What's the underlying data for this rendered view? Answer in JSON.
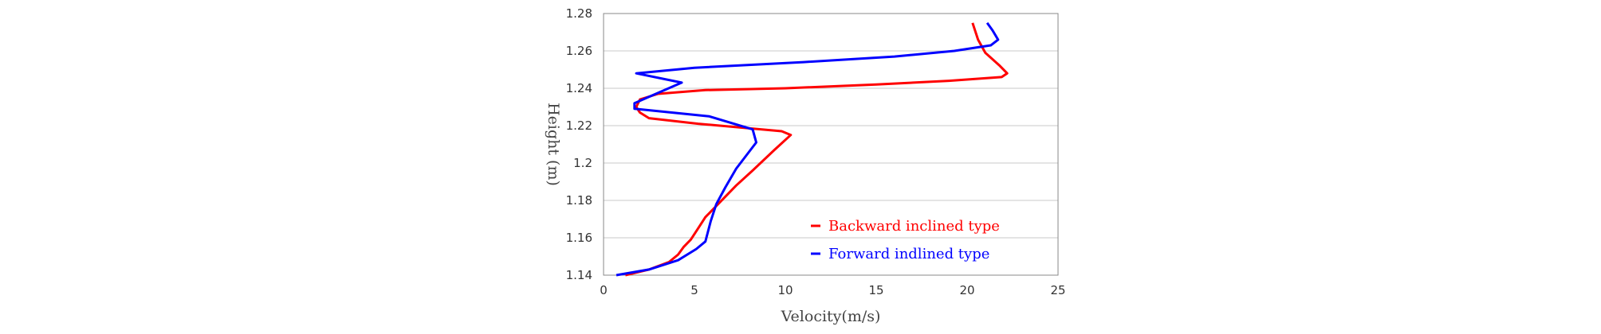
{
  "chart_data": {
    "type": "line",
    "title": "",
    "xlabel": "Velocity(m/s)",
    "ylabel": "Height (m)",
    "xlim": [
      0,
      25
    ],
    "ylim": [
      1.14,
      1.28
    ],
    "xticks": [
      0,
      5,
      10,
      15,
      20,
      25
    ],
    "xtick_labels": [
      "0",
      "5",
      "10",
      "15",
      "20",
      "25"
    ],
    "yticks": [
      1.14,
      1.16,
      1.18,
      1.2,
      1.22,
      1.24,
      1.26,
      1.28
    ],
    "ytick_labels": [
      "1.14",
      "1.16",
      "1.18",
      "1.2",
      "1.22",
      "1.24",
      "1.26",
      "1.28"
    ],
    "grid": "horizontal",
    "legend_position": "bottom-right",
    "series": [
      {
        "name": "Backward inclined type",
        "color": "#ff0000",
        "points": [
          [
            1.2,
            1.14
          ],
          [
            2.5,
            1.143
          ],
          [
            3.6,
            1.147
          ],
          [
            4.1,
            1.151
          ],
          [
            4.4,
            1.155
          ],
          [
            4.8,
            1.159
          ],
          [
            5.2,
            1.165
          ],
          [
            5.6,
            1.171
          ],
          [
            6.3,
            1.178
          ],
          [
            7.3,
            1.188
          ],
          [
            8.2,
            1.196
          ],
          [
            9.4,
            1.207
          ],
          [
            10.3,
            1.215
          ],
          [
            9.8,
            1.217
          ],
          [
            5.2,
            1.221
          ],
          [
            2.5,
            1.224
          ],
          [
            2.0,
            1.227
          ],
          [
            1.8,
            1.23
          ],
          [
            2.0,
            1.234
          ],
          [
            3.0,
            1.237
          ],
          [
            5.6,
            1.239
          ],
          [
            10.0,
            1.24
          ],
          [
            15.0,
            1.242
          ],
          [
            19.0,
            1.244
          ],
          [
            21.9,
            1.246
          ],
          [
            22.2,
            1.248
          ],
          [
            21.8,
            1.252
          ],
          [
            21.0,
            1.259
          ],
          [
            20.6,
            1.266
          ],
          [
            20.3,
            1.275
          ]
        ]
      },
      {
        "name": "Forward indlined type",
        "color": "#0000ff",
        "points": [
          [
            0.7,
            1.14
          ],
          [
            2.5,
            1.143
          ],
          [
            4.1,
            1.148
          ],
          [
            5.1,
            1.154
          ],
          [
            5.6,
            1.158
          ],
          [
            5.9,
            1.169
          ],
          [
            6.2,
            1.178
          ],
          [
            6.7,
            1.187
          ],
          [
            7.3,
            1.197
          ],
          [
            8.4,
            1.211
          ],
          [
            8.2,
            1.218
          ],
          [
            5.8,
            1.225
          ],
          [
            1.7,
            1.229
          ],
          [
            1.7,
            1.232
          ],
          [
            2.4,
            1.235
          ],
          [
            4.3,
            1.243
          ],
          [
            1.8,
            1.248
          ],
          [
            5.0,
            1.251
          ],
          [
            11.0,
            1.254
          ],
          [
            16.0,
            1.257
          ],
          [
            19.3,
            1.26
          ],
          [
            21.3,
            1.263
          ],
          [
            21.7,
            1.266
          ],
          [
            21.4,
            1.271
          ],
          [
            21.1,
            1.275
          ]
        ]
      }
    ]
  }
}
